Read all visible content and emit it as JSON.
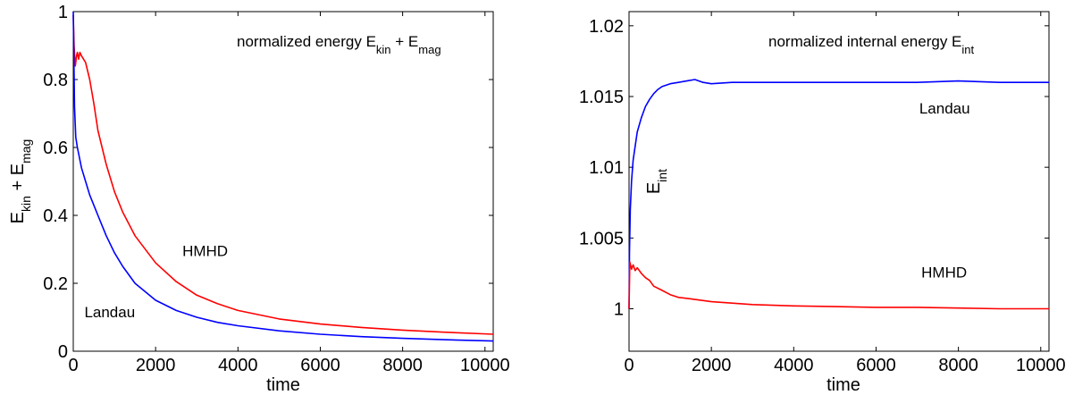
{
  "chart_data": [
    {
      "type": "line",
      "title": "normalized energy  E_kin + E_mag",
      "title_parts": {
        "prefix": "normalized energy  E",
        "sub1": "kin",
        "mid": " + E",
        "sub2": "mag"
      },
      "xlabel": "time",
      "ylabel_parts": {
        "b1": "E",
        "s1": "kin",
        "m": " + E",
        "s2": "mag"
      },
      "xlim": [
        0,
        10200
      ],
      "ylim": [
        0,
        1
      ],
      "xticks": [
        0,
        2000,
        4000,
        6000,
        8000,
        10000
      ],
      "yticks": [
        0,
        0.2,
        0.4,
        0.6,
        0.8,
        1
      ],
      "ytick_labels": [
        "0",
        "0.2",
        "0.4",
        "0.6",
        "0.8",
        "1"
      ],
      "grid": false,
      "series": [
        {
          "name": "HMHD",
          "color": "#ff0000",
          "x": [
            0,
            20,
            50,
            80,
            100,
            130,
            160,
            200,
            250,
            300,
            400,
            500,
            600,
            800,
            1000,
            1200,
            1500,
            2000,
            2500,
            3000,
            3500,
            4000,
            5000,
            6000,
            7000,
            8000,
            9000,
            10200
          ],
          "y": [
            0.99,
            0.9,
            0.84,
            0.87,
            0.88,
            0.86,
            0.88,
            0.87,
            0.86,
            0.85,
            0.8,
            0.73,
            0.65,
            0.55,
            0.47,
            0.41,
            0.34,
            0.26,
            0.205,
            0.165,
            0.14,
            0.12,
            0.095,
            0.08,
            0.07,
            0.062,
            0.056,
            0.05
          ]
        },
        {
          "name": "Landau",
          "color": "#0000ff",
          "x": [
            0,
            10,
            30,
            60,
            100,
            150,
            200,
            300,
            400,
            500,
            600,
            800,
            1000,
            1200,
            1500,
            2000,
            2500,
            3000,
            3500,
            4000,
            5000,
            6000,
            7000,
            8000,
            9000,
            10200
          ],
          "y": [
            1.0,
            0.9,
            0.72,
            0.63,
            0.6,
            0.57,
            0.54,
            0.5,
            0.46,
            0.43,
            0.4,
            0.34,
            0.29,
            0.25,
            0.2,
            0.15,
            0.12,
            0.1,
            0.085,
            0.075,
            0.06,
            0.05,
            0.043,
            0.038,
            0.034,
            0.03
          ]
        }
      ],
      "annotations": [
        {
          "text": "HMHD",
          "x": 2650,
          "y": 0.28
        },
        {
          "text": "Landau",
          "x": 270,
          "y": 0.1
        }
      ]
    },
    {
      "type": "line",
      "title": "normalized internal energy  E_int",
      "title_parts": {
        "prefix": "normalized internal energy  E",
        "sub1": "int"
      },
      "xlabel": "time",
      "xlim": [
        0,
        10200
      ],
      "ylim": [
        0.997,
        1.021
      ],
      "xticks": [
        0,
        2000,
        4000,
        6000,
        8000,
        10000
      ],
      "yticks": [
        1.0,
        1.005,
        1.01,
        1.015,
        1.02
      ],
      "ytick_labels": [
        "1",
        "1.005",
        "1.01",
        "1.015",
        "1.02"
      ],
      "grid": false,
      "series": [
        {
          "name": "Landau",
          "color": "#0000ff",
          "x": [
            0,
            10,
            30,
            60,
            100,
            150,
            200,
            300,
            400,
            500,
            600,
            700,
            800,
            1000,
            1200,
            1400,
            1600,
            1800,
            2000,
            2500,
            3000,
            4000,
            5000,
            6000,
            7000,
            8000,
            9000,
            10200
          ],
          "y": [
            1.0,
            1.004,
            1.007,
            1.009,
            1.0105,
            1.0115,
            1.0125,
            1.0135,
            1.0143,
            1.0148,
            1.0152,
            1.0155,
            1.0157,
            1.0159,
            1.016,
            1.0161,
            1.0162,
            1.016,
            1.0159,
            1.016,
            1.016,
            1.016,
            1.016,
            1.016,
            1.016,
            1.0161,
            1.016,
            1.016
          ]
        },
        {
          "name": "HMHD",
          "color": "#ff0000",
          "x": [
            0,
            20,
            60,
            100,
            150,
            200,
            300,
            400,
            500,
            600,
            800,
            1000,
            1200,
            1500,
            2000,
            2500,
            3000,
            4000,
            5000,
            6000,
            7000,
            8000,
            9000,
            10200
          ],
          "y": [
            1.0,
            1.0033,
            1.0028,
            1.0031,
            1.0027,
            1.0029,
            1.0025,
            1.0022,
            1.002,
            1.0016,
            1.0013,
            1.001,
            1.0008,
            1.0007,
            1.0005,
            1.0004,
            1.0003,
            1.0002,
            1.00015,
            1.0001,
            1.0001,
            1.00005,
            1.0,
            1.0
          ]
        }
      ],
      "annotations": [
        {
          "text": "Landau",
          "x": 7050,
          "y": 1.0138
        },
        {
          "text": "HMHD",
          "x": 7100,
          "y": 1.0022
        }
      ],
      "side_label_parts": {
        "b": "E",
        "s": "int"
      },
      "side_label_at": {
        "x": 300,
        "y": 1.009
      }
    }
  ]
}
